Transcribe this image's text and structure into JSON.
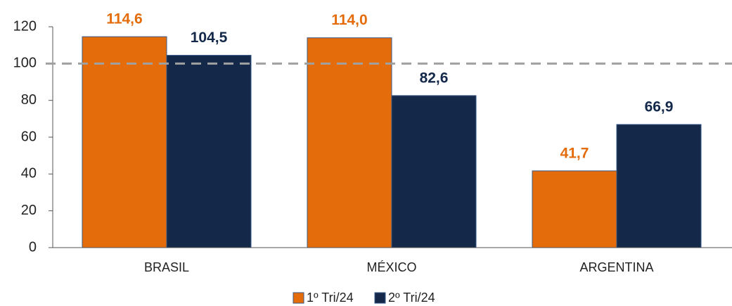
{
  "chart_data": {
    "type": "bar",
    "categories": [
      "BRASIL",
      "MÉXICO",
      "ARGENTINA"
    ],
    "series": [
      {
        "name": "1º Tri/24",
        "color": "#e46c0a",
        "values": [
          114.6,
          114.0,
          41.7
        ],
        "value_labels": [
          "114,6",
          "114,0",
          "41,7"
        ]
      },
      {
        "name": "2º Tri/24",
        "color": "#14294a",
        "values": [
          104.5,
          82.6,
          66.9
        ],
        "value_labels": [
          "104,5",
          "82,6",
          "66,9"
        ]
      }
    ],
    "ylim": [
      0,
      120
    ],
    "yticks": [
      0,
      20,
      40,
      60,
      80,
      100,
      120
    ],
    "reference_line": 100,
    "legend": "bottom"
  }
}
